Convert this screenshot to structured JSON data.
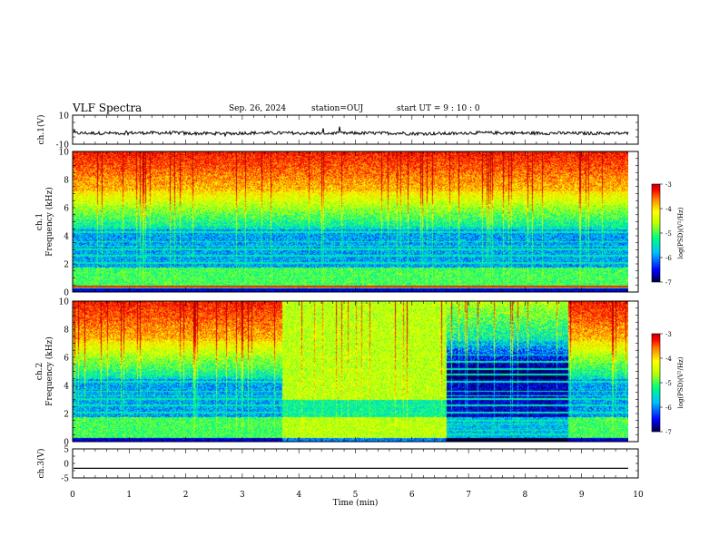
{
  "header": {
    "title": "VLF Spectra",
    "date": "Sep. 26, 2024",
    "station": "station=OUJ",
    "start": "start  UT =   9 : 10 : 0"
  },
  "colors": {
    "waveform": "#000000",
    "colormap": [
      "#000040",
      "#0000ff",
      "#00c0ff",
      "#00ff80",
      "#c0ff00",
      "#ffff00",
      "#ff8000",
      "#ff0000",
      "#c00000"
    ]
  },
  "chart_data": [
    {
      "type": "line",
      "panel": "ch1-waveform",
      "ylabel": "ch.1(V)",
      "ylim": [
        -10,
        10
      ],
      "yticks": [
        "10",
        "-10"
      ],
      "series": [
        {
          "values": [
            -2.4,
            -2.2,
            -2.6,
            -2.3,
            -2.5,
            -2.4,
            -2.7,
            -2.2,
            -2.4,
            -2.5
          ]
        }
      ]
    },
    {
      "type": "heatmap",
      "panel": "ch1-spectrogram",
      "ylabel": "ch.1\nFrequency (kHz)",
      "ylim": [
        0,
        10
      ],
      "yticks": [
        "0",
        "2",
        "4",
        "6",
        "8",
        "10"
      ],
      "xlim": [
        0,
        10
      ],
      "colorbar": {
        "label": "log(PSD)(V²/Hz)",
        "range": [
          -7,
          -3
        ],
        "ticks": [
          "-3",
          "-4",
          "-5",
          "-6",
          "-7"
        ]
      }
    },
    {
      "type": "heatmap",
      "panel": "ch2-spectrogram",
      "ylabel": "ch.2\nFrequency (kHz)",
      "ylim": [
        0,
        10
      ],
      "yticks": [
        "0",
        "2",
        "4",
        "6",
        "8",
        "10"
      ],
      "xlim": [
        0,
        10
      ],
      "colorbar": {
        "label": "log(PSD)(V²/Hz)",
        "range": [
          -7,
          -3
        ],
        "ticks": [
          "-3",
          "-4",
          "-5",
          "-6",
          "-7"
        ]
      }
    },
    {
      "type": "line",
      "panel": "ch3-waveform",
      "ylabel": "ch.3(V)",
      "ylim": [
        -5,
        5
      ],
      "yticks": [
        "5",
        "0",
        "-5"
      ],
      "xlabel": "Time (min)",
      "xticks": [
        "0",
        "1",
        "2",
        "3",
        "4",
        "5",
        "6",
        "7",
        "8",
        "9",
        "10"
      ],
      "series": [
        {
          "values": [
            -1.7,
            -1.7,
            -1.7,
            -1.7,
            -1.7,
            -1.7,
            -1.7,
            -1.7,
            -1.7,
            -1.7,
            -1.7
          ]
        }
      ]
    }
  ]
}
